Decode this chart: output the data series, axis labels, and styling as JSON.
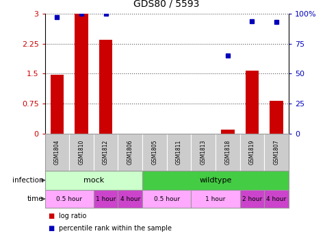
{
  "title": "GDS80 / 5593",
  "samples": [
    "GSM1804",
    "GSM1810",
    "GSM1812",
    "GSM1806",
    "GSM1805",
    "GSM1811",
    "GSM1813",
    "GSM1818",
    "GSM1819",
    "GSM1807"
  ],
  "log_ratio": [
    1.48,
    3.0,
    2.35,
    0.0,
    0.0,
    0.0,
    0.0,
    0.1,
    1.58,
    0.82
  ],
  "percentile": [
    97,
    100,
    100,
    0,
    0,
    0,
    0,
    65,
    94,
    93
  ],
  "ylim_left": [
    0,
    3.0
  ],
  "ylim_right": [
    0,
    100
  ],
  "yticks_left": [
    0,
    0.75,
    1.5,
    2.25,
    3.0
  ],
  "yticks_right": [
    0,
    25,
    50,
    75,
    100
  ],
  "ytick_labels_left": [
    "0",
    "0.75",
    "1.5",
    "2.25",
    "3"
  ],
  "ytick_labels_right": [
    "0",
    "25",
    "50",
    "75",
    "100%"
  ],
  "bar_color": "#cc0000",
  "dot_color": "#0000bb",
  "infection_mock_color": "#ccffcc",
  "infection_wild_color": "#44cc44",
  "time_light_color": "#ffaaff",
  "time_dark_color": "#cc44cc",
  "sample_bg_color": "#cccccc",
  "gridline_color": "#555555",
  "time_groups": [
    {
      "label": "0.5 hour",
      "start": 0,
      "end": 2,
      "dark": false
    },
    {
      "label": "1 hour",
      "start": 2,
      "end": 3,
      "dark": true
    },
    {
      "label": "4 hour",
      "start": 3,
      "end": 4,
      "dark": true
    },
    {
      "label": "0.5 hour",
      "start": 4,
      "end": 6,
      "dark": false
    },
    {
      "label": "1 hour",
      "start": 6,
      "end": 8,
      "dark": false
    },
    {
      "label": "2 hour",
      "start": 8,
      "end": 9,
      "dark": true
    },
    {
      "label": "4 hour",
      "start": 9,
      "end": 10,
      "dark": true
    }
  ]
}
